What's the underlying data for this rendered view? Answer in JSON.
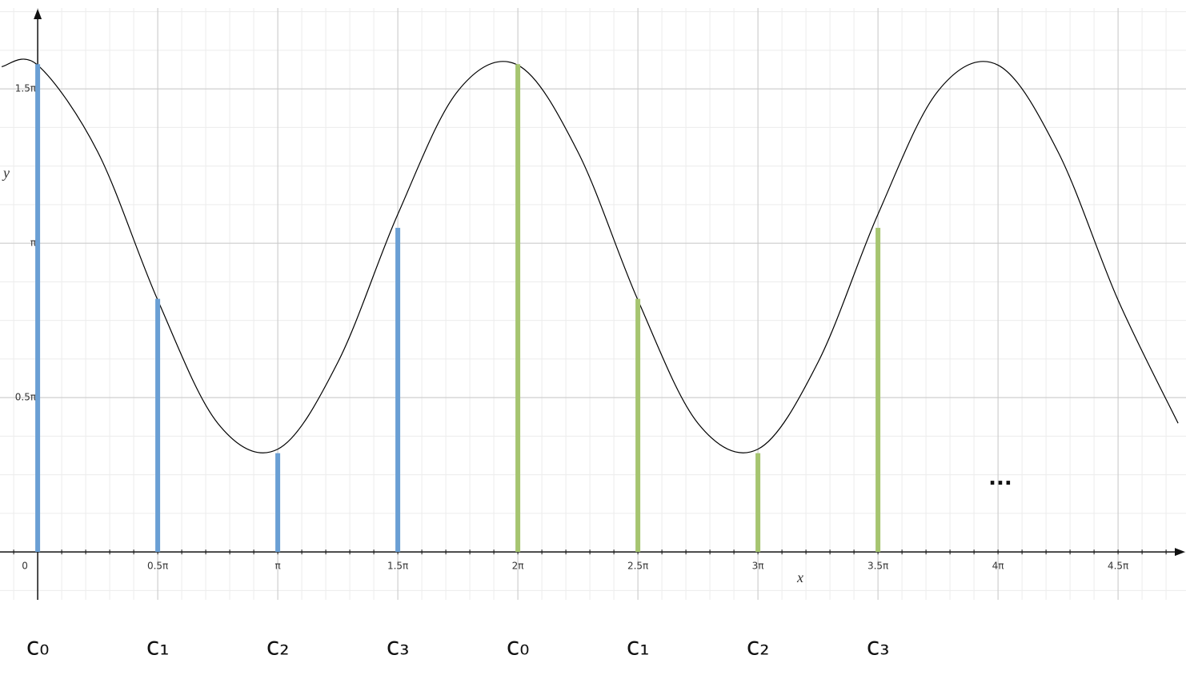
{
  "chart_data": {
    "type": "stem",
    "x_label": "x",
    "y_label": "y",
    "annotation": "...",
    "xlim": [
      -0.157,
      4.783
    ],
    "ylim": [
      -0.155,
      1.762
    ],
    "xticks": [
      0,
      {
        "value": 0.5,
        "label": "0.5π"
      },
      {
        "value": 1,
        "label": "π"
      },
      {
        "value": 1.5,
        "label": "1.5π"
      },
      {
        "value": 2,
        "label": "2π"
      },
      {
        "value": 2.5,
        "label": "2.5π"
      },
      {
        "value": 3,
        "label": "3π"
      },
      {
        "value": 3.5,
        "label": "3.5π"
      },
      {
        "value": 4,
        "label": "4π"
      },
      {
        "value": 4.5,
        "label": "4.5π"
      }
    ],
    "yticks": [
      {
        "value": 0.5,
        "label": "0.5π"
      },
      {
        "value": 1,
        "label": "π"
      },
      {
        "value": 1.5,
        "label": "1.5π"
      }
    ],
    "grid": true,
    "curve": {
      "color": "#000000",
      "x": [
        -0.15,
        0,
        0.25,
        0.5,
        0.75,
        1,
        1.25,
        1.5,
        1.75,
        2,
        2.25,
        2.5,
        2.75,
        3,
        3.25,
        3.5,
        3.75,
        4,
        4.25,
        4.5,
        4.75
      ],
      "values": [
        1.572,
        1.577,
        1.296,
        0.816,
        0.417,
        0.333,
        0.614,
        1.094,
        1.493,
        1.577,
        1.296,
        0.816,
        0.417,
        0.333,
        0.614,
        1.094,
        1.493,
        1.577,
        1.296,
        0.816,
        0.417
      ]
    },
    "series": [
      {
        "color": "#6a9fd4",
        "x": [
          0,
          0.5,
          1,
          1.5
        ],
        "values": [
          1.58,
          0.82,
          0.32,
          1.05
        ],
        "labels": [
          "c₀",
          "c₁",
          "c₂",
          "c₃"
        ]
      },
      {
        "color": "#a6c570",
        "x": [
          2,
          2.5,
          3,
          3.5
        ],
        "values": [
          1.58,
          0.82,
          0.32,
          1.05
        ],
        "labels": [
          "c₀",
          "c₁",
          "c₂",
          "c₃"
        ]
      }
    ]
  }
}
